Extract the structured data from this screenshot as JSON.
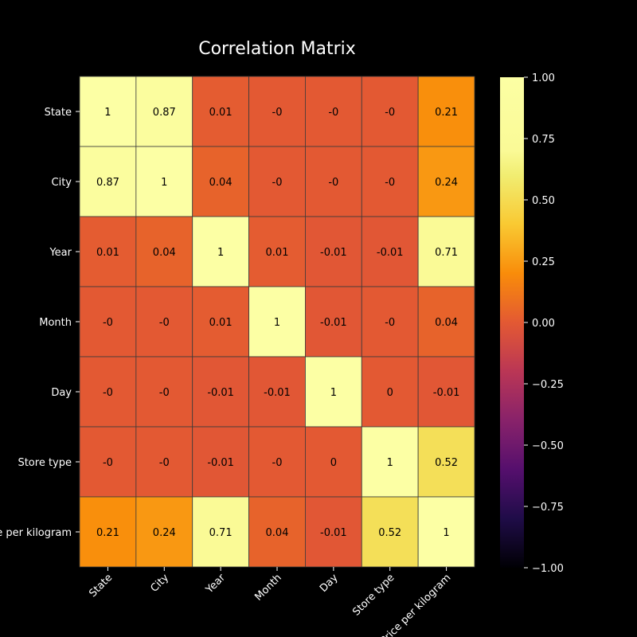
{
  "chart_data": {
    "type": "heatmap",
    "title": "Correlation Matrix",
    "row_labels": [
      "State",
      "City",
      "Year",
      "Month",
      "Day",
      "Store type",
      "Price per kilogram"
    ],
    "col_labels": [
      "State",
      "City",
      "Year",
      "Month",
      "Day",
      "Store type",
      "Price per kilogram"
    ],
    "values": [
      [
        1,
        0.87,
        0.01,
        0,
        0,
        0,
        0.21
      ],
      [
        0.87,
        1,
        0.04,
        0,
        0,
        0,
        0.24
      ],
      [
        0.01,
        0.04,
        1,
        0.01,
        -0.01,
        -0.01,
        0.71
      ],
      [
        0,
        0,
        0.01,
        1,
        -0.01,
        0,
        0.04
      ],
      [
        0,
        0,
        -0.01,
        -0.01,
        1,
        0,
        -0.01
      ],
      [
        0,
        0,
        -0.01,
        0,
        0,
        1,
        0.52
      ],
      [
        0.21,
        0.24,
        0.71,
        0.04,
        -0.01,
        0.52,
        1
      ]
    ],
    "annotations": [
      [
        "1",
        "0.87",
        "0.01",
        "-0",
        "-0",
        "-0",
        "0.21"
      ],
      [
        "0.87",
        "1",
        "0.04",
        "-0",
        "-0",
        "-0",
        "0.24"
      ],
      [
        "0.01",
        "0.04",
        "1",
        "0.01",
        "-0.01",
        "-0.01",
        "0.71"
      ],
      [
        "-0",
        "-0",
        "0.01",
        "1",
        "-0.01",
        "-0",
        "0.04"
      ],
      [
        "-0",
        "-0",
        "-0.01",
        "-0.01",
        "1",
        "0",
        "-0.01"
      ],
      [
        "-0",
        "-0",
        "-0.01",
        "-0",
        "0",
        "1",
        "0.52"
      ],
      [
        "0.21",
        "0.24",
        "0.71",
        "0.04",
        "-0.01",
        "0.52",
        "1"
      ]
    ],
    "colorbar": {
      "vmin": -1.0,
      "vmax": 1.0,
      "ticks": [
        1.0,
        0.75,
        0.5,
        0.25,
        0.0,
        -0.25,
        -0.5,
        -0.75,
        -1.0
      ],
      "tick_labels": [
        "1.00",
        "0.75",
        "0.50",
        "0.25",
        "0.00",
        "−0.25",
        "−0.50",
        "−0.75",
        "−1.00"
      ]
    },
    "colormap": "inferno",
    "grid": true
  }
}
